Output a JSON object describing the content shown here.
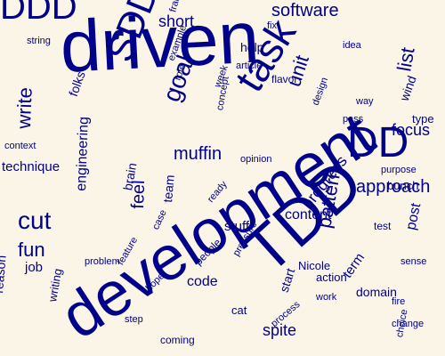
{
  "colors": {
    "background": "#faf5e6",
    "text": "#00008b"
  },
  "words": [
    "driven",
    "development",
    "DDD",
    "TDD",
    "task",
    "SDD",
    "time",
    "DD",
    "software",
    "goal",
    "cut",
    "pattern",
    "list",
    "write",
    "muffin",
    "approach",
    "unit",
    "fun",
    "technique",
    "content",
    "progress",
    "feel",
    "focus",
    "engineering",
    "spite",
    "short",
    "domain",
    "action",
    "code",
    "stuff",
    "job",
    "reason",
    "help",
    "wind",
    "term",
    "brain",
    "cat",
    "team",
    "writing",
    "people",
    "process",
    "design",
    "test",
    "fire",
    "pressure",
    "string",
    "pass",
    "way",
    "folks",
    "case",
    "feature",
    "start",
    "Nicole",
    "type",
    "step",
    "ready",
    "hope",
    "fix",
    "bunch",
    "post",
    "flavor",
    "concept",
    "opinion",
    "coming",
    "work",
    "framework",
    "purpose",
    "idea",
    "role",
    "article",
    "context",
    "sense",
    "week",
    "choice",
    "change",
    "problem",
    "example",
    "friend"
  ]
}
